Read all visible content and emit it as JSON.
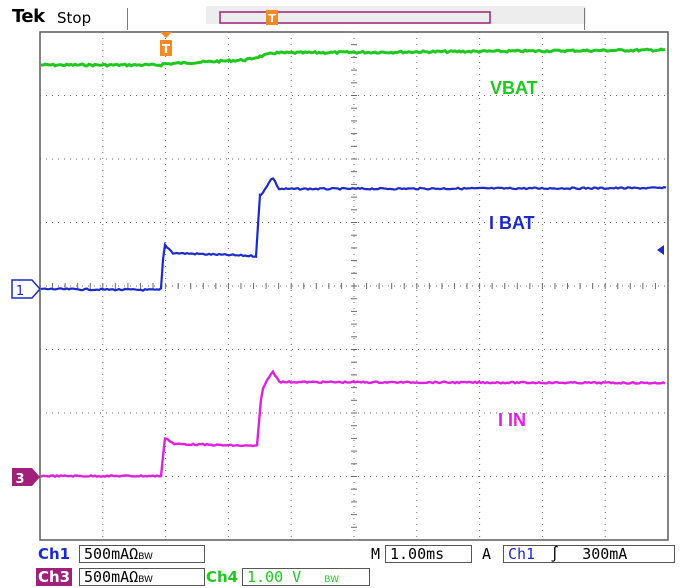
{
  "header": {
    "brand": "Tek",
    "acq_state": "Stop"
  },
  "trigger_marker": "T",
  "waveform_labels": {
    "vbat": "VBAT",
    "ibat": "I BAT",
    "iin": "I IN"
  },
  "channel_markers": {
    "ch1": "1",
    "ch3": "3"
  },
  "colors": {
    "ch1": "#1c2bc8",
    "ch3": "#e020e0",
    "ch4": "#1ec81e",
    "trigger": "#f08a24",
    "record_bar": "#a0207a",
    "grid": "#5a5a5a"
  },
  "footer": {
    "ch1_label": "Ch1",
    "ch1_scale": "500mA",
    "ch1_suffix": "Ω",
    "ch1_bw": "BW",
    "ch3_label": "Ch3",
    "ch3_scale": "500mA",
    "ch3_suffix": "Ω",
    "ch3_bw": "BW",
    "ch4_label": "Ch4",
    "ch4_scale": "1.00 V",
    "ch4_bw": "BW",
    "timebase_prefix": "M",
    "timebase": "1.00ms",
    "trigger_prefix": "A",
    "trigger_source": "Ch1",
    "trigger_slope": "∫",
    "trigger_level": "300mA"
  }
}
